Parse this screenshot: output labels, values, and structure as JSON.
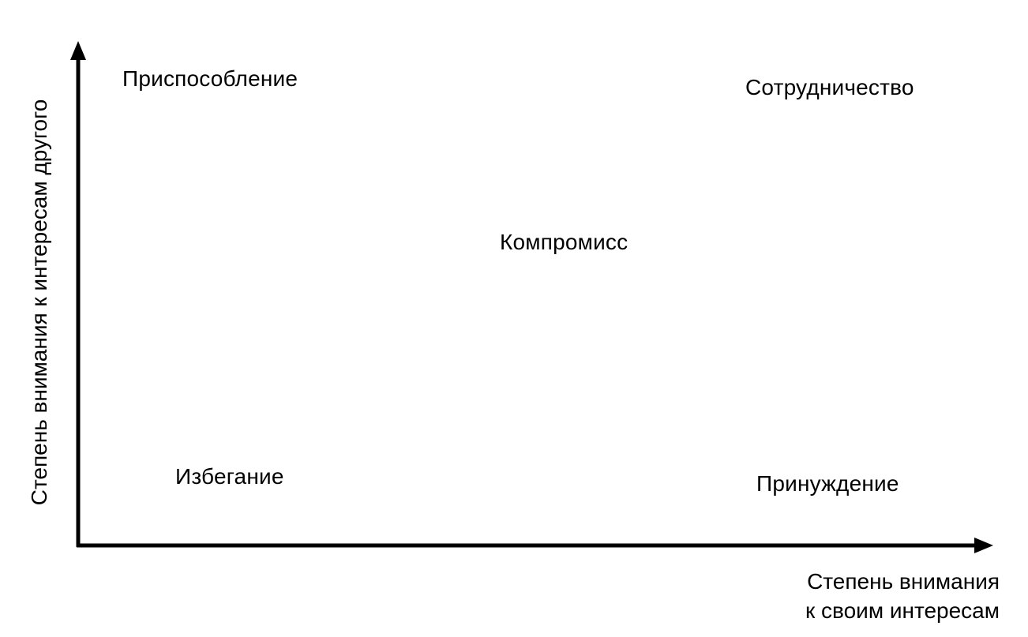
{
  "diagram": {
    "quadrants": {
      "top_left": "Приспособление",
      "top_right": "Сотрудничество",
      "center": "Компромисс",
      "bottom_left": "Избегание",
      "bottom_right": "Принуждение"
    },
    "x_axis": {
      "title_line1": "Степень внимания",
      "title_line2": "к своим интересам"
    },
    "y_axis": {
      "title": "Степень внимания к интересам другого"
    },
    "colors": {
      "ink": "#000000",
      "background": "#ffffff"
    }
  }
}
